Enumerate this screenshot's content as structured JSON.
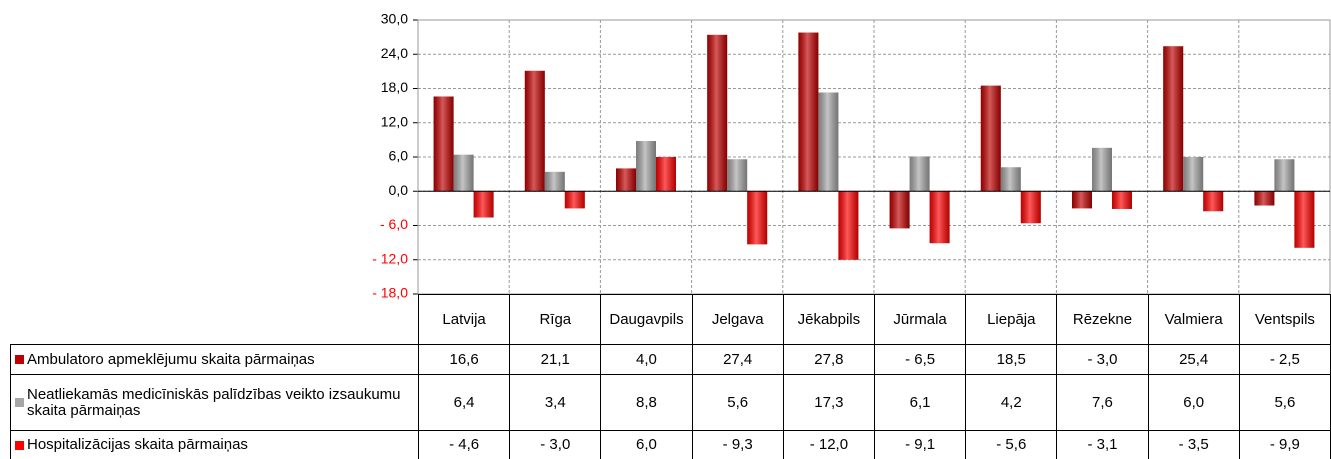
{
  "chart_data": {
    "type": "bar",
    "categories": [
      "Latvija",
      "Rīga",
      "Daugavpils",
      "Jelgava",
      "Jēkabpils",
      "Jūrmala",
      "Liepāja",
      "Rēzekne",
      "Valmiera",
      "Ventspils"
    ],
    "series": [
      {
        "name": "Ambulatoro apmeklējumu skaita pārmaiņas",
        "color": "#c00000",
        "values": [
          16.6,
          21.1,
          4.0,
          27.4,
          27.8,
          -6.5,
          18.5,
          -3.0,
          25.4,
          -2.5
        ],
        "value_labels": [
          "16,6",
          "21,1",
          "4,0",
          "27,4",
          "27,8",
          "- 6,5",
          "18,5",
          "- 3,0",
          "25,4",
          "- 2,5"
        ]
      },
      {
        "name": "Neatliekamās medicīniskās palīdzības veikto izsaukumu skaita pārmaiņas",
        "color": "#a6a6a6",
        "values": [
          6.4,
          3.4,
          8.8,
          5.6,
          17.3,
          6.1,
          4.2,
          7.6,
          6.0,
          5.6
        ],
        "value_labels": [
          "6,4",
          "3,4",
          "8,8",
          "5,6",
          "17,3",
          "6,1",
          "4,2",
          "7,6",
          "6,0",
          "5,6"
        ]
      },
      {
        "name": "Hospitalizācijas skaita pārmaiņas",
        "color": "#ff0000",
        "values": [
          -4.6,
          -3.0,
          6.0,
          -9.3,
          -12.0,
          -9.1,
          -5.6,
          -3.1,
          -3.5,
          -9.9
        ],
        "value_labels": [
          "- 4,6",
          "- 3,0",
          "6,0",
          "- 9,3",
          "- 12,0",
          "- 9,1",
          "- 5,6",
          "- 3,1",
          "- 3,5",
          "- 9,9"
        ]
      }
    ],
    "ylim": [
      -18,
      30
    ],
    "yticks": [
      {
        "value": 30,
        "label": "30,0"
      },
      {
        "value": 24,
        "label": "24,0"
      },
      {
        "value": 18,
        "label": "18,0"
      },
      {
        "value": 12,
        "label": "12,0"
      },
      {
        "value": 6,
        "label": "6,0"
      },
      {
        "value": 0,
        "label": "0,0"
      },
      {
        "value": -6,
        "label": "- 6,0"
      },
      {
        "value": -12,
        "label": "- 12,0"
      },
      {
        "value": -18,
        "label": "- 18,0"
      }
    ],
    "negative_tick_color": "#ff0000",
    "grid": true
  }
}
